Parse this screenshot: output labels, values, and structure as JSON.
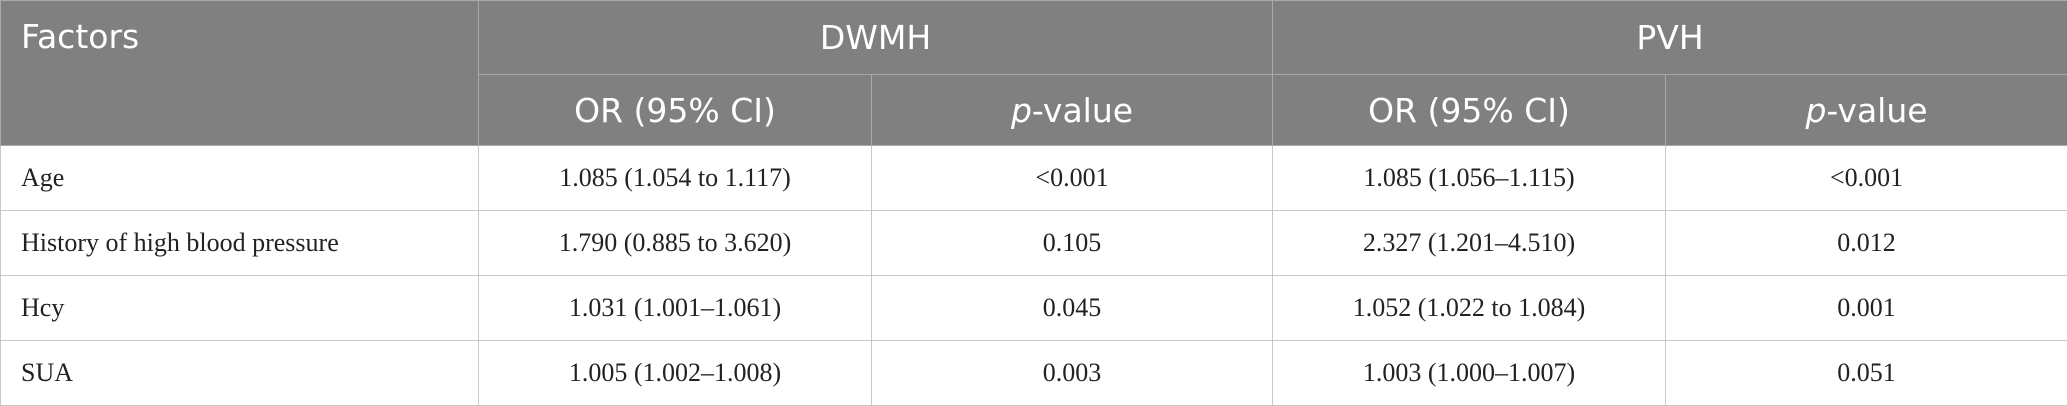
{
  "table": {
    "header": {
      "factors": "Factors",
      "groups": [
        "DWMH",
        "PVH"
      ],
      "subheaders": [
        {
          "text": "OR (95% CI)"
        },
        {
          "italic": "p",
          "text": "-value"
        },
        {
          "text": "OR (95% CI)"
        },
        {
          "italic": "p",
          "text": "-value"
        }
      ]
    },
    "rows": [
      [
        "Age",
        "1.085 (1.054 to 1.117)",
        "<0.001",
        "1.085 (1.056–1.115)",
        "<0.001"
      ],
      [
        "History of high blood pressure",
        "1.790 (0.885 to 3.620)",
        "0.105",
        "2.327 (1.201–4.510)",
        "0.012"
      ],
      [
        "Hcy",
        "1.031 (1.001–1.061)",
        "0.045",
        "1.052 (1.022 to 1.084)",
        "0.001"
      ],
      [
        "SUA",
        "1.005 (1.002–1.008)",
        "0.003",
        "1.003 (1.000–1.007)",
        "0.051"
      ]
    ]
  }
}
